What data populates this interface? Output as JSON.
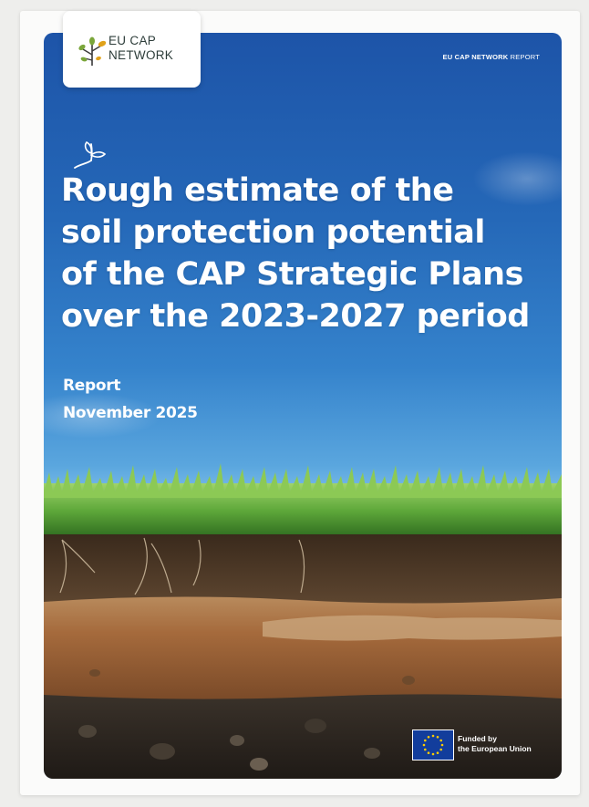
{
  "logo": {
    "line1": "EU CAP",
    "line2": "NETWORK"
  },
  "header": {
    "brand": "EU CAP NETWORK",
    "label": "REPORT"
  },
  "title_lines": [
    "Rough estimate of the",
    "soil protection potential",
    "of the CAP Strategic Plans",
    "over the 2023-2027 period"
  ],
  "subtitle": {
    "type": "Report",
    "date": "November 2025"
  },
  "funding": {
    "line1": "Funded by",
    "line2": "the European Union"
  },
  "colors": {
    "sky_top": "#1d54a8",
    "sky_bottom": "#b5dcf5",
    "grass": "#5ea83a",
    "topsoil": "#4a3826",
    "subsoil": "#a56a3c",
    "bedrock_soil": "#2c2620",
    "eu_blue": "#123d9c",
    "eu_gold": "#ffcc00",
    "logo_green": "#7aa63a"
  },
  "icons": [
    "leaf-sprout-logo-icon",
    "sprout-icon",
    "eu-flag-icon"
  ]
}
